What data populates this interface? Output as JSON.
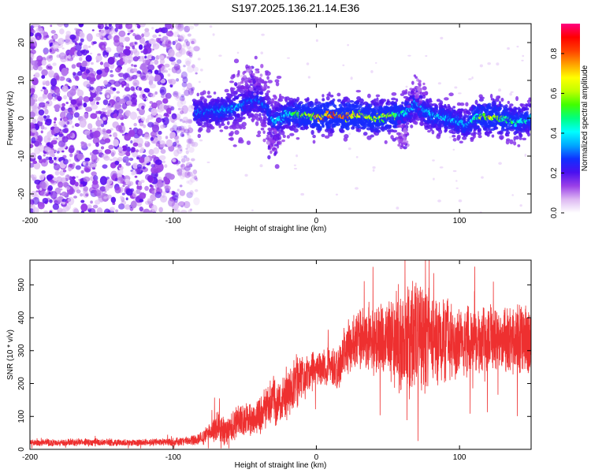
{
  "title": "S197.2025.136.21.14.E36",
  "chart_data": [
    {
      "type": "heatmap",
      "xlabel": "Height of straight line (km)",
      "ylabel": "Frequency (Hz)",
      "xlim": [
        -200,
        150
      ],
      "ylim": [
        -25,
        25
      ],
      "xticks": [
        -200,
        -100,
        0,
        100
      ],
      "yticks": [
        -20,
        -10,
        0,
        10,
        20
      ],
      "colorbar": {
        "label": "Normalized spectral amplitude",
        "range": [
          0,
          0.95
        ],
        "ticks": [
          0.0,
          0.2,
          0.4,
          0.6,
          0.8
        ],
        "colors": [
          "#ffffff",
          "#ddb8f2",
          "#9a40e8",
          "#4a10f0",
          "#1030ff",
          "#00a8ff",
          "#00ffff",
          "#00ff80",
          "#40ff00",
          "#c0ff00",
          "#ffff00",
          "#ffa000",
          "#ff4000",
          "#ff0000",
          "#ff0080"
        ]
      },
      "noise_region_x": [
        -200,
        -85
      ],
      "ridge": {
        "x": [
          -85,
          -75,
          -65,
          -55,
          -48,
          -42,
          -35,
          -30,
          -20,
          -10,
          0,
          10,
          20,
          30,
          40,
          50,
          60,
          65,
          70,
          75,
          80,
          90,
          100,
          105,
          110,
          120,
          130,
          140,
          150
        ],
        "freq": [
          1.5,
          1.5,
          2,
          3,
          4,
          5,
          3,
          -1,
          1,
          1,
          0.5,
          1,
          0.5,
          1,
          0,
          0.5,
          1,
          2,
          4,
          2,
          1,
          0,
          -1,
          -2,
          0,
          0.5,
          0,
          -1,
          0
        ],
        "amplitude": [
          0.3,
          0.3,
          0.35,
          0.35,
          0.3,
          0.3,
          0.3,
          0.35,
          0.45,
          0.55,
          0.75,
          0.8,
          0.8,
          0.7,
          0.6,
          0.65,
          0.45,
          0.4,
          0.4,
          0.35,
          0.4,
          0.4,
          0.35,
          0.35,
          0.45,
          0.7,
          0.55,
          0.45,
          0.4
        ]
      }
    },
    {
      "type": "line",
      "xlabel": "Height of straight line (km)",
      "ylabel": "SNR (10 * v/v)",
      "xlim": [
        -200,
        150
      ],
      "ylim": [
        0,
        575
      ],
      "xticks": [
        -200,
        -100,
        0,
        100
      ],
      "yticks": [
        0,
        100,
        200,
        300,
        400,
        500
      ],
      "color": "#ee3030",
      "x": [
        -200,
        -180,
        -160,
        -140,
        -120,
        -100,
        -90,
        -80,
        -75,
        -70,
        -65,
        -60,
        -55,
        -50,
        -45,
        -40,
        -35,
        -30,
        -25,
        -20,
        -15,
        -10,
        -5,
        0,
        5,
        10,
        15,
        20,
        25,
        30,
        35,
        40,
        45,
        50,
        55,
        60,
        65,
        70,
        75,
        80,
        85,
        90,
        95,
        100,
        110,
        120,
        130,
        140,
        150
      ],
      "mean": [
        20,
        20,
        22,
        20,
        21,
        22,
        25,
        35,
        55,
        70,
        55,
        60,
        90,
        95,
        85,
        100,
        130,
        150,
        140,
        170,
        200,
        220,
        230,
        240,
        250,
        260,
        240,
        300,
        320,
        330,
        340,
        340,
        330,
        340,
        340,
        330,
        340,
        345,
        350,
        350,
        340,
        330,
        320,
        320,
        330,
        340,
        330,
        340,
        330
      ],
      "spread": [
        12,
        12,
        14,
        12,
        12,
        14,
        16,
        25,
        35,
        50,
        45,
        50,
        60,
        60,
        55,
        60,
        70,
        80,
        70,
        80,
        90,
        80,
        70,
        60,
        60,
        70,
        70,
        90,
        100,
        100,
        110,
        130,
        120,
        140,
        160,
        180,
        190,
        190,
        200,
        170,
        150,
        140,
        130,
        120,
        110,
        120,
        110,
        120,
        110
      ]
    }
  ]
}
